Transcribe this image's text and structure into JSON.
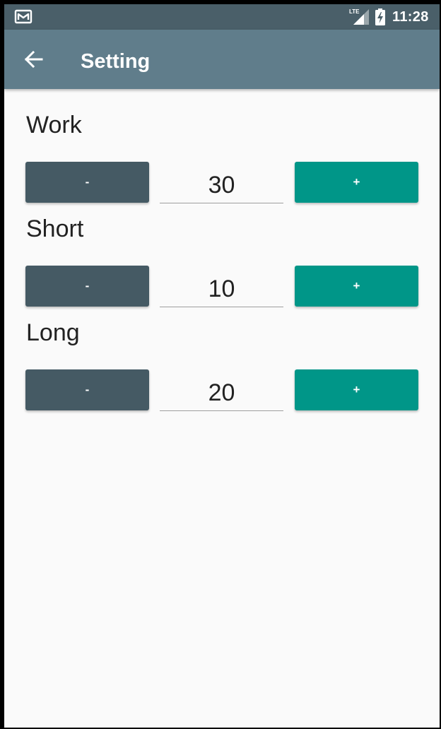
{
  "status_bar": {
    "icons": [
      "gmail-icon",
      "lte-signal-icon",
      "battery-charging-icon"
    ],
    "network_label": "LTE",
    "time": "11:28"
  },
  "app_bar": {
    "back_icon": "arrow-left-icon",
    "title": "Setting"
  },
  "settings": [
    {
      "label": "Work",
      "minus_label": "-",
      "value": "30",
      "plus_label": "+"
    },
    {
      "label": "Short",
      "minus_label": "-",
      "value": "10",
      "plus_label": "+"
    },
    {
      "label": "Long",
      "minus_label": "-",
      "value": "20",
      "plus_label": "+"
    }
  ],
  "colors": {
    "status_bar": "#4a5f69",
    "app_bar": "#607d8b",
    "minus_button": "#455a64",
    "plus_button": "#009688",
    "background": "#fafafa"
  }
}
